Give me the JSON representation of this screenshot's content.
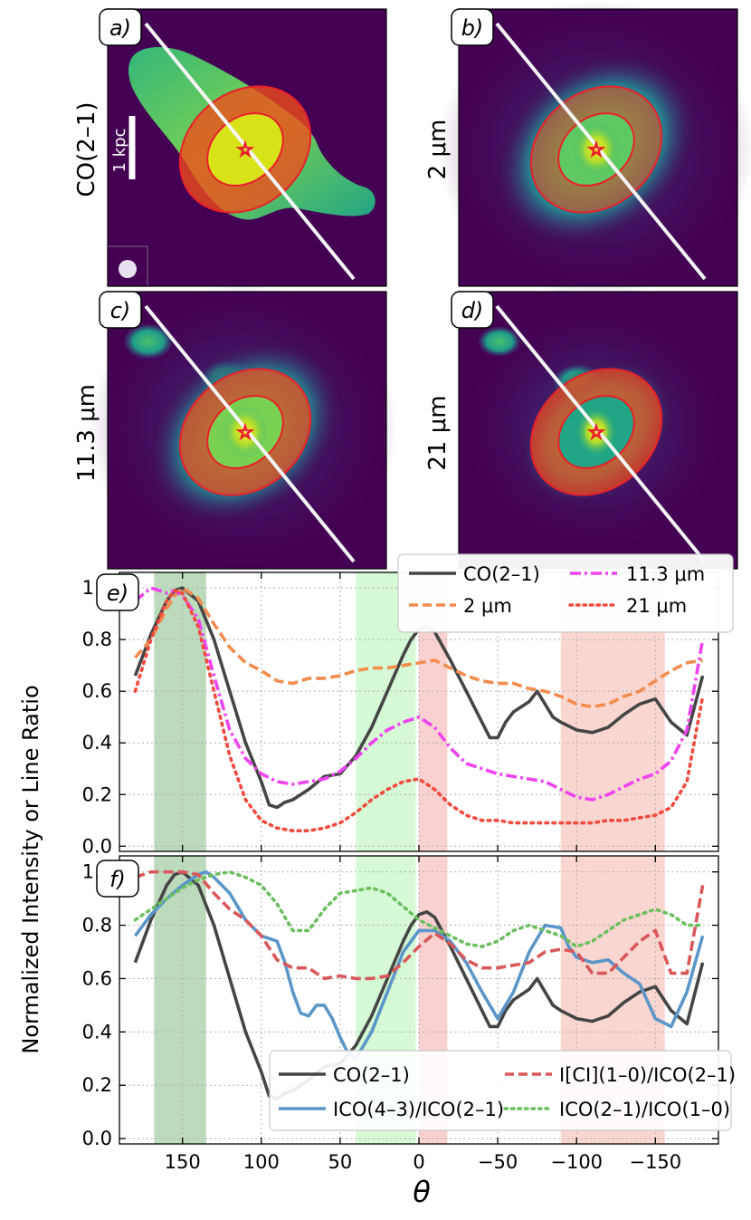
{
  "figure": {
    "images": [
      {
        "letter": "a)",
        "label": "CO(2–1)",
        "map": "co",
        "scalebar": "1 kpc",
        "beam": true
      },
      {
        "letter": "b)",
        "label": "2 μm",
        "map": "k"
      },
      {
        "letter": "c)",
        "label": "11.3 μm",
        "map": "pah"
      },
      {
        "letter": "d)",
        "label": "21 μm",
        "map": "mir"
      }
    ],
    "ylabel": "Normalized Intensity or Line Ratio",
    "xlabel": "θ",
    "colors": {
      "co": "#454545",
      "k": "#f28c4e",
      "pah": "#ee44ee",
      "mir": "#f24b3e",
      "co43": "#5b96c8",
      "ci": "#d9585a",
      "co21_10": "#6bbf5e",
      "ring": "#e8202a",
      "green_band": "#2e8b2e",
      "lime_band": "#7cf07c",
      "red_band": "#f07070"
    }
  },
  "chart_data": [
    {
      "type": "line",
      "panel": "e)",
      "xlim": [
        190,
        -190
      ],
      "ylim": [
        -0.02,
        1.06
      ],
      "xticks": [
        150,
        100,
        50,
        0,
        -50,
        -100,
        -150
      ],
      "xtick_labels": [
        "150",
        "100",
        "50",
        "0",
        "−50",
        "−100",
        "−150"
      ],
      "yticks": [
        0.0,
        0.2,
        0.4,
        0.6,
        0.8,
        1.0
      ],
      "ytick_labels": [
        "0.0",
        "0.2",
        "0.4",
        "0.6",
        "0.8",
        "1.0"
      ],
      "bands": [
        {
          "x0": 168,
          "x1": 135,
          "color": "#2e8b2e"
        },
        {
          "x0": 40,
          "x1": 2,
          "color": "#7cf07c"
        },
        {
          "x0": 0,
          "x1": -18,
          "color": "#f07070"
        },
        {
          "x0": -90,
          "x1": -156,
          "color": "#f08070"
        }
      ],
      "series": [
        {
          "name": "CO(2–1)",
          "style": "solid",
          "color": "#454545",
          "x": [
            180,
            170,
            160,
            155,
            150,
            140,
            130,
            120,
            110,
            100,
            95,
            90,
            85,
            80,
            70,
            60,
            50,
            40,
            30,
            20,
            10,
            5,
            0,
            -5,
            -10,
            -20,
            -30,
            -40,
            -45,
            -50,
            -55,
            -60,
            -70,
            -75,
            -80,
            -85,
            -90,
            -100,
            -110,
            -120,
            -130,
            -140,
            -150,
            -160,
            -170,
            -180
          ],
          "y": [
            0.66,
            0.82,
            0.95,
            0.99,
            1.0,
            0.95,
            0.8,
            0.6,
            0.4,
            0.25,
            0.16,
            0.15,
            0.17,
            0.18,
            0.22,
            0.27,
            0.28,
            0.35,
            0.46,
            0.6,
            0.74,
            0.8,
            0.84,
            0.85,
            0.83,
            0.72,
            0.6,
            0.48,
            0.42,
            0.42,
            0.48,
            0.52,
            0.56,
            0.6,
            0.55,
            0.5,
            0.48,
            0.45,
            0.44,
            0.46,
            0.51,
            0.55,
            0.57,
            0.48,
            0.43,
            0.66
          ]
        },
        {
          "name": "2 μm",
          "style": "dashed",
          "color": "#f28c4e",
          "x": [
            180,
            170,
            160,
            155,
            150,
            140,
            130,
            120,
            110,
            100,
            90,
            80,
            70,
            60,
            50,
            40,
            30,
            20,
            10,
            0,
            -10,
            -20,
            -30,
            -40,
            -50,
            -60,
            -70,
            -80,
            -90,
            -100,
            -110,
            -120,
            -130,
            -140,
            -150,
            -160,
            -170,
            -180
          ],
          "y": [
            0.73,
            0.8,
            0.92,
            0.97,
            1.0,
            0.96,
            0.86,
            0.77,
            0.71,
            0.68,
            0.64,
            0.63,
            0.65,
            0.65,
            0.66,
            0.68,
            0.69,
            0.69,
            0.7,
            0.71,
            0.72,
            0.69,
            0.66,
            0.64,
            0.63,
            0.63,
            0.61,
            0.6,
            0.58,
            0.55,
            0.54,
            0.55,
            0.58,
            0.6,
            0.64,
            0.68,
            0.71,
            0.72
          ]
        },
        {
          "name": "11.3 μm",
          "style": "dashdot",
          "color": "#ee44ee",
          "x": [
            180,
            170,
            160,
            155,
            150,
            140,
            130,
            120,
            110,
            100,
            90,
            80,
            70,
            60,
            50,
            40,
            30,
            20,
            10,
            0,
            -10,
            -20,
            -30,
            -40,
            -50,
            -60,
            -70,
            -80,
            -90,
            -100,
            -110,
            -120,
            -130,
            -140,
            -150,
            -160,
            -170,
            -180
          ],
          "y": [
            0.95,
            1.0,
            0.98,
            0.99,
            0.97,
            0.88,
            0.66,
            0.45,
            0.34,
            0.28,
            0.25,
            0.24,
            0.25,
            0.26,
            0.29,
            0.34,
            0.4,
            0.45,
            0.48,
            0.5,
            0.46,
            0.38,
            0.32,
            0.3,
            0.28,
            0.27,
            0.26,
            0.25,
            0.22,
            0.19,
            0.18,
            0.2,
            0.23,
            0.26,
            0.28,
            0.33,
            0.45,
            0.8
          ]
        },
        {
          "name": "21 μm",
          "style": "dotted",
          "color": "#f24b3e",
          "x": [
            180,
            170,
            160,
            155,
            150,
            140,
            130,
            120,
            110,
            100,
            90,
            80,
            70,
            60,
            50,
            40,
            30,
            20,
            10,
            0,
            -10,
            -20,
            -30,
            -40,
            -50,
            -60,
            -70,
            -80,
            -90,
            -100,
            -110,
            -120,
            -130,
            -140,
            -150,
            -160,
            -170,
            -180
          ],
          "y": [
            0.6,
            0.8,
            0.95,
            0.99,
            0.98,
            0.85,
            0.6,
            0.35,
            0.18,
            0.1,
            0.07,
            0.06,
            0.06,
            0.07,
            0.09,
            0.13,
            0.18,
            0.22,
            0.25,
            0.26,
            0.22,
            0.16,
            0.12,
            0.1,
            0.1,
            0.09,
            0.09,
            0.09,
            0.09,
            0.09,
            0.09,
            0.1,
            0.1,
            0.11,
            0.12,
            0.15,
            0.25,
            0.58
          ]
        }
      ],
      "legend": {
        "placement": "top-right",
        "entries": [
          "CO(2–1)",
          "11.3 μm",
          "2 μm",
          "21 μm"
        ]
      }
    },
    {
      "type": "line",
      "panel": "f)",
      "xlim": [
        190,
        -190
      ],
      "ylim": [
        -0.02,
        1.06
      ],
      "xticks": [
        150,
        100,
        50,
        0,
        -50,
        -100,
        -150
      ],
      "xtick_labels": [
        "150",
        "100",
        "50",
        "0",
        "−50",
        "−100",
        "−150"
      ],
      "yticks": [
        0.0,
        0.2,
        0.4,
        0.6,
        0.8,
        1.0
      ],
      "ytick_labels": [
        "0.0",
        "0.2",
        "0.4",
        "0.6",
        "0.8",
        "1.0"
      ],
      "bands": [
        {
          "x0": 168,
          "x1": 135,
          "color": "#2e8b2e"
        },
        {
          "x0": 40,
          "x1": 2,
          "color": "#7cf07c"
        },
        {
          "x0": 0,
          "x1": -18,
          "color": "#f07070"
        },
        {
          "x0": -90,
          "x1": -156,
          "color": "#f08070"
        }
      ],
      "series": [
        {
          "name": "CO(2–1)",
          "style": "solid",
          "color": "#454545",
          "x": [
            180,
            170,
            160,
            155,
            150,
            140,
            130,
            120,
            110,
            100,
            95,
            90,
            85,
            80,
            70,
            60,
            50,
            40,
            30,
            20,
            10,
            5,
            0,
            -5,
            -10,
            -20,
            -30,
            -40,
            -45,
            -50,
            -55,
            -60,
            -70,
            -75,
            -80,
            -85,
            -90,
            -100,
            -110,
            -120,
            -130,
            -140,
            -150,
            -160,
            -170,
            -180
          ],
          "y": [
            0.66,
            0.82,
            0.95,
            0.99,
            1.0,
            0.95,
            0.8,
            0.6,
            0.4,
            0.25,
            0.16,
            0.15,
            0.17,
            0.18,
            0.22,
            0.27,
            0.28,
            0.35,
            0.46,
            0.6,
            0.74,
            0.8,
            0.84,
            0.85,
            0.83,
            0.72,
            0.6,
            0.48,
            0.42,
            0.42,
            0.48,
            0.52,
            0.56,
            0.6,
            0.55,
            0.5,
            0.48,
            0.45,
            0.44,
            0.46,
            0.51,
            0.55,
            0.57,
            0.48,
            0.43,
            0.66
          ]
        },
        {
          "name": "I_CO(4–3)/I_CO(2–1)",
          "style": "solid",
          "color": "#5b96c8",
          "x": [
            180,
            170,
            160,
            150,
            140,
            135,
            130,
            120,
            110,
            100,
            90,
            85,
            80,
            75,
            70,
            65,
            60,
            55,
            50,
            45,
            40,
            30,
            20,
            10,
            0,
            -10,
            -20,
            -30,
            -40,
            -50,
            -60,
            -70,
            -80,
            -90,
            -95,
            -100,
            -110,
            -120,
            -130,
            -140,
            -150,
            -160,
            -170,
            -180
          ],
          "y": [
            0.76,
            0.84,
            0.9,
            0.95,
            0.99,
            1.0,
            0.98,
            0.92,
            0.82,
            0.76,
            0.74,
            0.66,
            0.55,
            0.47,
            0.46,
            0.5,
            0.5,
            0.45,
            0.38,
            0.32,
            0.3,
            0.4,
            0.55,
            0.7,
            0.78,
            0.78,
            0.74,
            0.66,
            0.55,
            0.45,
            0.55,
            0.7,
            0.8,
            0.79,
            0.72,
            0.68,
            0.66,
            0.67,
            0.62,
            0.58,
            0.45,
            0.42,
            0.55,
            0.76
          ]
        },
        {
          "name": "I_[CI](1–0)/I_CO(2–1)",
          "style": "dashed",
          "color": "#d9585a",
          "x": [
            180,
            170,
            160,
            150,
            140,
            130,
            120,
            110,
            100,
            90,
            80,
            70,
            60,
            50,
            40,
            30,
            20,
            10,
            0,
            -10,
            -20,
            -30,
            -40,
            -50,
            -60,
            -70,
            -80,
            -90,
            -100,
            -110,
            -120,
            -130,
            -140,
            -150,
            -160,
            -170,
            -180
          ],
          "y": [
            0.98,
            1.0,
            1.0,
            1.0,
            0.99,
            0.92,
            0.86,
            0.82,
            0.76,
            0.67,
            0.64,
            0.64,
            0.6,
            0.61,
            0.6,
            0.6,
            0.61,
            0.66,
            0.72,
            0.77,
            0.73,
            0.67,
            0.64,
            0.64,
            0.65,
            0.66,
            0.7,
            0.71,
            0.7,
            0.62,
            0.62,
            0.68,
            0.74,
            0.78,
            0.62,
            0.62,
            0.95
          ]
        },
        {
          "name": "I_CO(2–1)/I_CO(1–0)",
          "style": "dotted",
          "color": "#6bbf5e",
          "x": [
            180,
            170,
            160,
            150,
            140,
            130,
            120,
            110,
            100,
            90,
            80,
            70,
            60,
            50,
            40,
            30,
            20,
            10,
            0,
            -10,
            -20,
            -30,
            -40,
            -50,
            -60,
            -70,
            -80,
            -90,
            -100,
            -110,
            -120,
            -130,
            -140,
            -150,
            -160,
            -170,
            -180
          ],
          "y": [
            0.82,
            0.86,
            0.9,
            0.94,
            0.97,
            0.99,
            1.0,
            0.98,
            0.95,
            0.88,
            0.78,
            0.78,
            0.86,
            0.92,
            0.93,
            0.94,
            0.92,
            0.87,
            0.82,
            0.79,
            0.76,
            0.73,
            0.72,
            0.74,
            0.78,
            0.8,
            0.78,
            0.76,
            0.72,
            0.74,
            0.78,
            0.82,
            0.84,
            0.86,
            0.84,
            0.8,
            0.8
          ]
        }
      ],
      "legend": {
        "placement": "lower-right",
        "entries": [
          "CO(2–1)",
          "I[CI](1–0)/ICO(2–1)",
          "ICO(4–3)/ICO(2–1)",
          "ICO(2–1)/ICO(1–0)"
        ]
      }
    }
  ]
}
